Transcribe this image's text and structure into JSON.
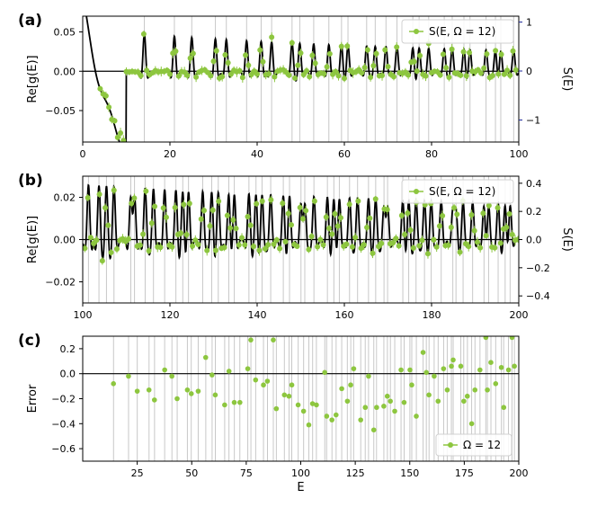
{
  "chart_data": [
    {
      "type": "line",
      "panel_label": "(a)",
      "ylabel": "Re[g(E)]",
      "y2label": "S(E)",
      "xlim": [
        0,
        100
      ],
      "ylim": [
        -0.09,
        0.07
      ],
      "y2lim": [
        -1.45,
        1.12
      ],
      "xticks": [
        0,
        20,
        40,
        60,
        80,
        100
      ],
      "yticks": [
        -0.05,
        0.0,
        0.05
      ],
      "y2ticks": [
        -1,
        0,
        1
      ],
      "xtick_labels": [
        "0",
        "20",
        "40",
        "60",
        "80",
        "100"
      ],
      "ytick_labels": [
        "−0.05",
        "0.00",
        "0.05"
      ],
      "y2tick_labels": [
        "−1",
        "0",
        "1"
      ],
      "legend": {
        "label": "S(E, Ω = 12)",
        "position": "top-right"
      },
      "grid": "vertical gray lines at Riemann zeta zeros",
      "series": [
        {
          "kind": "curve",
          "color": "#000000"
        },
        {
          "kind": "points-with-errorbars",
          "color": "#8dc63f"
        }
      ]
    },
    {
      "type": "line",
      "panel_label": "(b)",
      "ylabel": "Re[g(E)]",
      "y2label": "S(E)",
      "xlim": [
        100,
        200
      ],
      "ylim": [
        -0.03,
        0.03
      ],
      "y2lim": [
        -0.45,
        0.45
      ],
      "xticks": [
        100,
        120,
        140,
        160,
        180,
        200
      ],
      "yticks": [
        -0.02,
        0.0,
        0.02
      ],
      "y2ticks": [
        -0.4,
        -0.2,
        0.0,
        0.2,
        0.4
      ],
      "xtick_labels": [
        "100",
        "120",
        "140",
        "160",
        "180",
        "200"
      ],
      "ytick_labels": [
        "−0.02",
        "0.00",
        "0.02"
      ],
      "y2tick_labels": [
        "−0.4",
        "−0.2",
        "0.0",
        "0.2",
        "0.4"
      ],
      "legend": {
        "label": "S(E, Ω = 12)",
        "position": "top-right"
      },
      "grid": "vertical gray lines at Riemann zeta zeros",
      "series": [
        {
          "kind": "curve",
          "color": "#000000"
        },
        {
          "kind": "points-with-errorbars",
          "color": "#8dc63f"
        }
      ]
    },
    {
      "type": "scatter",
      "panel_label": "(c)",
      "xlabel": "E",
      "ylabel": "Error",
      "xlim": [
        0,
        200
      ],
      "ylim": [
        -0.7,
        0.3
      ],
      "xticks": [
        25,
        50,
        75,
        100,
        125,
        150,
        175,
        200
      ],
      "yticks": [
        -0.6,
        -0.4,
        -0.2,
        0.0,
        0.2
      ],
      "xtick_labels": [
        "25",
        "50",
        "75",
        "100",
        "125",
        "150",
        "175",
        "200"
      ],
      "ytick_labels": [
        "−0.6",
        "−0.4",
        "−0.2",
        "0.0",
        "0.2"
      ],
      "legend": {
        "label": "Ω = 12",
        "position": "bottom-right"
      },
      "grid": "vertical gray lines at Riemann zeta zeros",
      "series": [
        {
          "kind": "points",
          "color": "#8dc63f",
          "x": [
            14.1,
            21.0,
            25.0,
            30.4,
            32.9,
            37.6,
            40.9,
            43.3,
            48.0,
            49.8,
            52.97,
            56.4,
            59.3,
            60.8,
            65.1,
            67.1,
            69.5,
            72.1,
            75.7,
            77.1,
            79.3,
            82.9,
            84.7,
            87.4,
            88.8,
            92.5,
            94.6,
            95.9,
            98.8,
            101.3,
            103.7,
            105.4,
            107.2,
            111.0,
            111.9,
            114.3,
            116.2,
            118.8,
            121.4,
            122.9,
            124.3,
            127.5,
            129.6,
            131.1,
            133.5,
            134.8,
            138.1,
            139.7,
            141.1,
            143.1,
            146.0,
            147.4,
            150.1,
            150.9,
            153.0,
            156.1,
            157.6,
            158.8,
            161.2,
            163.0,
            165.5,
            167.2,
            169.1,
            169.9,
            173.4,
            174.8,
            176.4,
            178.4,
            179.9,
            182.2,
            184.9,
            185.6,
            187.2,
            189.4,
            192.0,
            193.1,
            195.3,
            196.9,
            198.0
          ],
          "y": [
            -0.08,
            -0.02,
            -0.14,
            -0.13,
            -0.21,
            0.03,
            -0.02,
            -0.2,
            -0.13,
            -0.16,
            -0.14,
            0.13,
            -0.01,
            -0.17,
            -0.25,
            0.02,
            -0.23,
            -0.23,
            0.04,
            0.27,
            -0.05,
            -0.09,
            -0.06,
            0.27,
            -0.28,
            -0.17,
            -0.18,
            -0.09,
            -0.25,
            -0.3,
            -0.41,
            -0.24,
            -0.25,
            0.01,
            -0.34,
            -0.37,
            -0.33,
            -0.12,
            -0.22,
            -0.09,
            0.04,
            -0.37,
            -0.27,
            -0.02,
            -0.45,
            -0.27,
            -0.26,
            -0.18,
            -0.22,
            -0.3,
            0.03,
            -0.23,
            0.03,
            -0.09,
            -0.34,
            0.17,
            0.01,
            -0.17,
            -0.02,
            -0.22,
            0.04,
            -0.13,
            0.06,
            0.11,
            0.06,
            -0.22,
            -0.18,
            -0.4,
            -0.13,
            0.03,
            0.29,
            -0.13,
            0.09,
            -0.08,
            0.05,
            -0.27,
            0.03,
            0.29,
            0.06
          ]
        }
      ]
    }
  ]
}
